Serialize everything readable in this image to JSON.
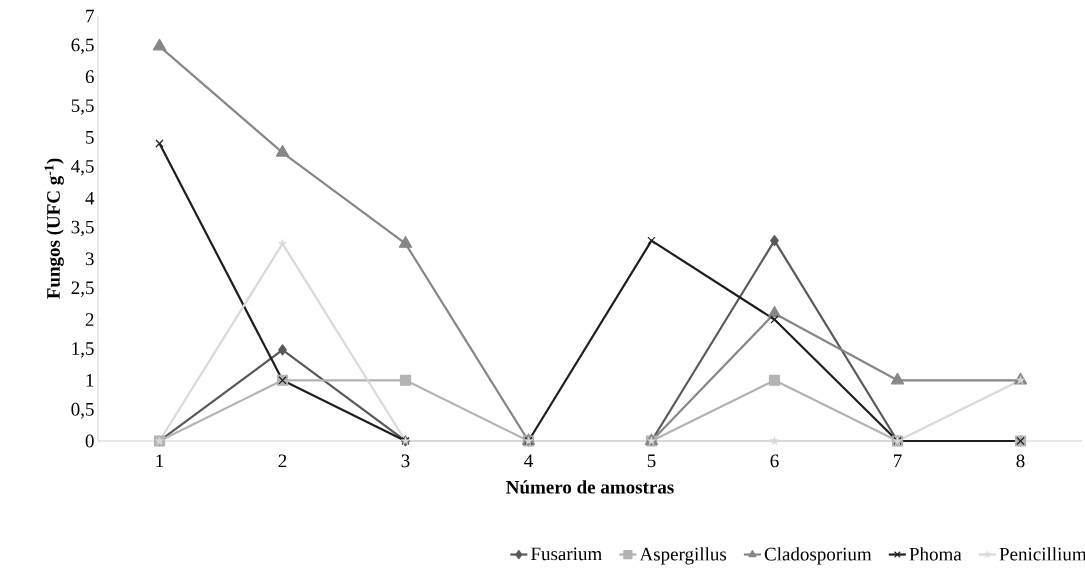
{
  "chart_data": {
    "type": "line",
    "xlabel": "Número de amostras",
    "ylabel": "Fungos  (UFC g$^{-1}$)",
    "categories": [
      "1",
      "2",
      "3",
      "4",
      "5",
      "6",
      "7",
      "8"
    ],
    "ylim": [
      0,
      7
    ],
    "yticks": [
      0,
      {
        "value": 0.5,
        "label": "0,5"
      },
      1,
      {
        "value": 1.5,
        "label": "1,5"
      },
      2,
      {
        "value": 2.5,
        "label": "2,5"
      },
      3,
      {
        "value": 3.5,
        "label": "3,5"
      },
      4,
      {
        "value": 4.5,
        "label": "4,5"
      },
      5,
      {
        "value": 5.5,
        "label": "5,5"
      },
      6,
      {
        "value": 6.5,
        "label": "6,5"
      },
      7
    ],
    "grid": false,
    "legend": "bottom",
    "line_style": "solid",
    "series": [
      {
        "name": "Fusarium",
        "color": "#595959",
        "marker": "diamond",
        "values": [
          0,
          1.5,
          0,
          0,
          0,
          3.3,
          0,
          0
        ]
      },
      {
        "name": "Aspergillus",
        "color": "#b3b3b3",
        "marker": "square",
        "values": [
          0,
          1,
          1,
          0,
          0,
          1,
          0,
          0
        ]
      },
      {
        "name": "Cladosporium",
        "color": "#878787",
        "marker": "triangle",
        "values": [
          6.5,
          4.75,
          3.25,
          0,
          0,
          2.1,
          1,
          1
        ]
      },
      {
        "name": "Phoma",
        "color": "#1e1e1e",
        "marker": "cross",
        "values": [
          4.9,
          1,
          0,
          0,
          3.3,
          2,
          0,
          0
        ]
      },
      {
        "name": "Penicillium",
        "color": "#d9d9d9",
        "marker": "star",
        "values": [
          0,
          3.25,
          0,
          0,
          0,
          0,
          0,
          1
        ]
      }
    ]
  }
}
